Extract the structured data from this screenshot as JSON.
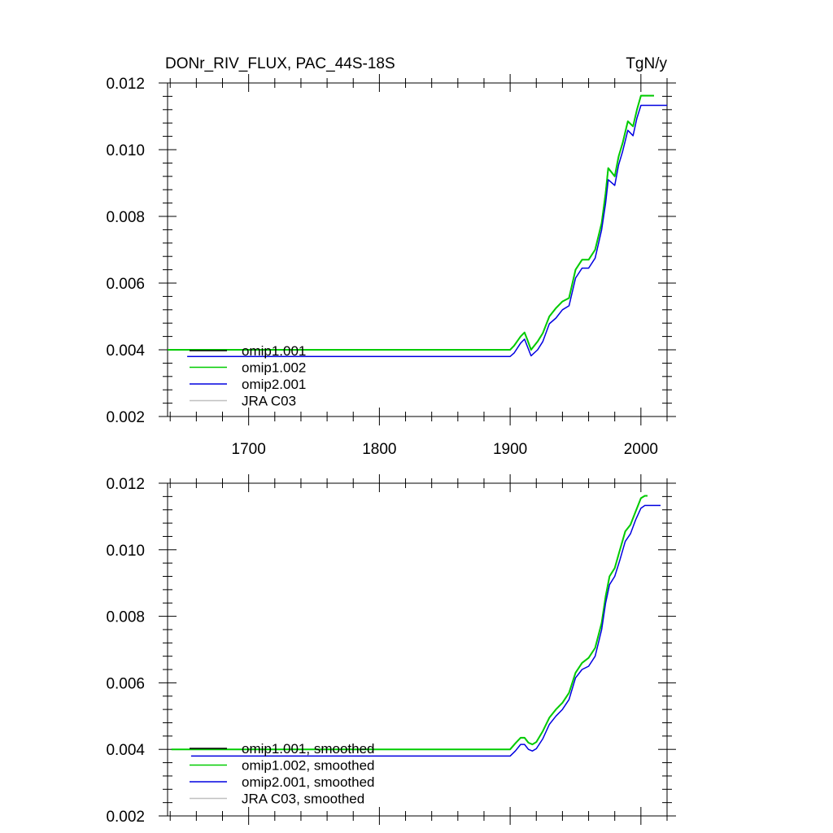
{
  "header": {
    "title": "DONr_RIV_FLUX, PAC_44S-18S",
    "units": "TgN/y"
  },
  "chart_data": [
    {
      "type": "line",
      "title": "DONr_RIV_FLUX, PAC_44S-18S",
      "units": "TgN/y",
      "xlim": [
        1638,
        2020
      ],
      "ylim": [
        0.002,
        0.012
      ],
      "xticks": [
        1700,
        1800,
        1900,
        2000
      ],
      "xtick_labels": [
        "1700",
        "1800",
        "1900",
        "2000"
      ],
      "yticks": [
        0.002,
        0.004,
        0.006,
        0.008,
        0.01,
        0.012
      ],
      "ytick_labels": [
        "0.002",
        "0.004",
        "0.006",
        "0.008",
        "0.010",
        "0.012"
      ],
      "legend": "bottom-left",
      "series": [
        {
          "name": "omip1.001",
          "color": "#000000",
          "x": [
            1638,
            1900,
            1903,
            1908,
            1911,
            1913,
            1916,
            1921,
            1925,
            1930,
            1935,
            1940,
            1945,
            1950,
            1955,
            1960,
            1965,
            1970,
            1973,
            1975,
            1980,
            1983,
            1986,
            1990,
            1994,
            1997,
            2000,
            2010
          ],
          "y": [
            0.004,
            0.004,
            0.00412,
            0.0044,
            0.00452,
            0.00432,
            0.004,
            0.00425,
            0.0045,
            0.005,
            0.00525,
            0.00545,
            0.00555,
            0.0064,
            0.0067,
            0.0067,
            0.007,
            0.0078,
            0.0087,
            0.00945,
            0.0092,
            0.0098,
            0.0102,
            0.01085,
            0.0107,
            0.0112,
            0.01162,
            0.01162
          ]
        },
        {
          "name": "omip1.002",
          "color": "#00cc00",
          "x": [
            1638,
            1900,
            1903,
            1908,
            1911,
            1913,
            1916,
            1921,
            1925,
            1930,
            1935,
            1940,
            1945,
            1950,
            1955,
            1960,
            1965,
            1970,
            1973,
            1975,
            1980,
            1983,
            1986,
            1990,
            1994,
            1997,
            2000,
            2010
          ],
          "y": [
            0.004,
            0.004,
            0.00412,
            0.0044,
            0.00452,
            0.00432,
            0.004,
            0.00425,
            0.0045,
            0.005,
            0.00525,
            0.00545,
            0.00555,
            0.0064,
            0.0067,
            0.0067,
            0.007,
            0.0078,
            0.0087,
            0.00945,
            0.0092,
            0.0098,
            0.0102,
            0.01085,
            0.0107,
            0.0112,
            0.01162,
            0.01162
          ]
        },
        {
          "name": "omip2.001",
          "color": "#0000e0",
          "x": [
            1653,
            1900,
            1903,
            1908,
            1911,
            1913,
            1916,
            1921,
            1925,
            1930,
            1935,
            1940,
            1945,
            1950,
            1955,
            1960,
            1965,
            1970,
            1973,
            1975,
            1980,
            1983,
            1986,
            1990,
            1994,
            1997,
            2000,
            2020
          ],
          "y": [
            0.0038,
            0.0038,
            0.0039,
            0.0042,
            0.00432,
            0.00412,
            0.00382,
            0.004,
            0.00425,
            0.00478,
            0.00495,
            0.0052,
            0.00532,
            0.00615,
            0.00645,
            0.00645,
            0.00675,
            0.0076,
            0.0084,
            0.0091,
            0.00893,
            0.00955,
            0.00995,
            0.01058,
            0.01042,
            0.01095,
            0.01133,
            0.01133
          ]
        },
        {
          "name": "JRA C03",
          "color": "#c0c0c0",
          "x": [],
          "y": []
        }
      ]
    },
    {
      "type": "line",
      "xlim": [
        1638,
        2020
      ],
      "ylim": [
        0.002,
        0.012
      ],
      "xticks": [
        1700,
        1800,
        1900,
        2000
      ],
      "yticks": [
        0.002,
        0.004,
        0.006,
        0.008,
        0.01,
        0.012
      ],
      "ytick_labels": [
        "0.002",
        "0.004",
        "0.006",
        "0.008",
        "0.010",
        "0.012"
      ],
      "legend": "bottom-left",
      "series": [
        {
          "name": "omip1.001, smoothed",
          "color": "#000000",
          "x": [
            1641,
            1900,
            1904,
            1908,
            1911,
            1914,
            1917,
            1920,
            1925,
            1930,
            1935,
            1940,
            1945,
            1950,
            1955,
            1960,
            1965,
            1970,
            1973,
            1976,
            1980,
            1984,
            1988,
            1992,
            1996,
            2000,
            2003,
            2005
          ],
          "y": [
            0.004,
            0.004,
            0.00418,
            0.00435,
            0.00435,
            0.0042,
            0.00415,
            0.00422,
            0.00455,
            0.00495,
            0.0052,
            0.0054,
            0.0057,
            0.0063,
            0.0066,
            0.00675,
            0.00705,
            0.0078,
            0.0086,
            0.0092,
            0.00945,
            0.01,
            0.01055,
            0.01075,
            0.01115,
            0.01155,
            0.01162,
            0.01162
          ]
        },
        {
          "name": "omip1.002, smoothed",
          "color": "#00cc00",
          "x": [
            1641,
            1900,
            1904,
            1908,
            1911,
            1914,
            1917,
            1920,
            1925,
            1930,
            1935,
            1940,
            1945,
            1950,
            1955,
            1960,
            1965,
            1970,
            1973,
            1976,
            1980,
            1984,
            1988,
            1992,
            1996,
            2000,
            2003,
            2005
          ],
          "y": [
            0.004,
            0.004,
            0.00418,
            0.00435,
            0.00435,
            0.0042,
            0.00415,
            0.00422,
            0.00455,
            0.00495,
            0.0052,
            0.0054,
            0.0057,
            0.0063,
            0.0066,
            0.00675,
            0.00705,
            0.0078,
            0.0086,
            0.0092,
            0.00945,
            0.01,
            0.01055,
            0.01075,
            0.01115,
            0.01155,
            0.01162,
            0.01162
          ]
        },
        {
          "name": "omip2.001, smoothed",
          "color": "#0000e0",
          "x": [
            1656,
            1900,
            1904,
            1908,
            1911,
            1914,
            1917,
            1920,
            1925,
            1930,
            1935,
            1940,
            1945,
            1950,
            1955,
            1960,
            1965,
            1970,
            1973,
            1976,
            1980,
            1984,
            1988,
            1992,
            1996,
            2000,
            2003,
            2015
          ],
          "y": [
            0.0038,
            0.0038,
            0.00395,
            0.00415,
            0.00415,
            0.004,
            0.00395,
            0.00402,
            0.00432,
            0.00475,
            0.005,
            0.0052,
            0.0055,
            0.00615,
            0.0064,
            0.0065,
            0.0068,
            0.0076,
            0.0084,
            0.00895,
            0.0092,
            0.0097,
            0.01025,
            0.01048,
            0.0109,
            0.01125,
            0.01133,
            0.01133
          ]
        },
        {
          "name": "JRA C03, smoothed",
          "color": "#c0c0c0",
          "x": [],
          "y": []
        }
      ]
    }
  ]
}
